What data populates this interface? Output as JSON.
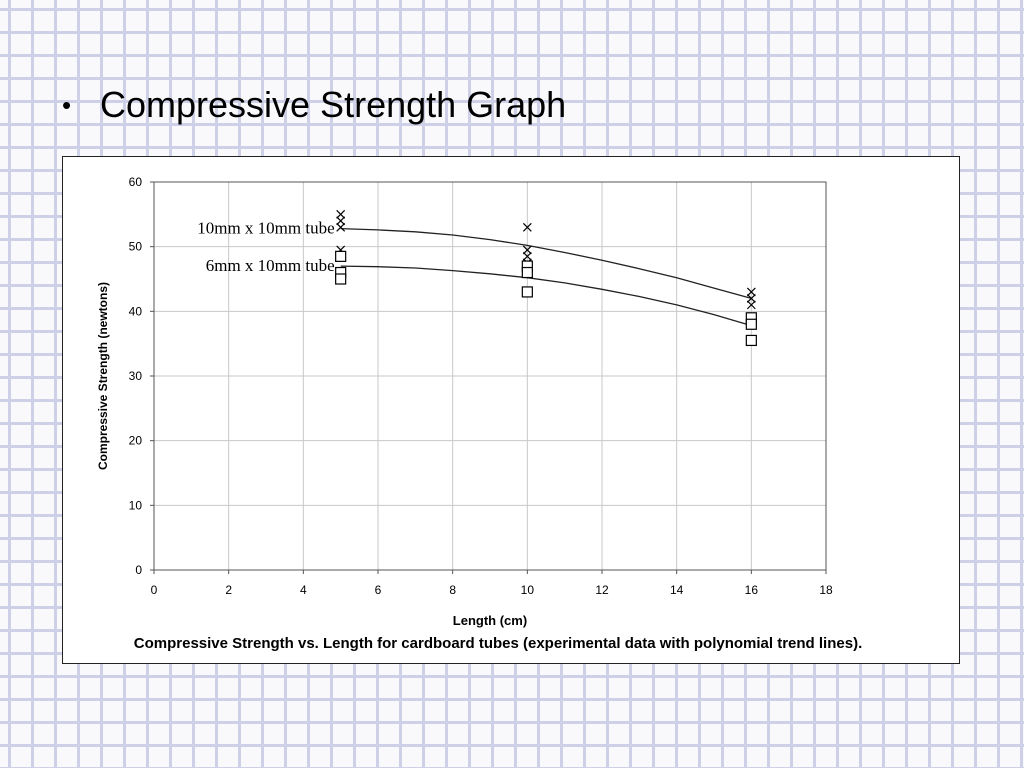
{
  "slide": {
    "bullet": "•",
    "title": "Compressive Strength Graph"
  },
  "chart_data": {
    "type": "scatter",
    "title": "",
    "caption": "Compressive Strength vs. Length for cardboard tubes (experimental data with polynomial trend lines).",
    "xlabel": "Length (cm)",
    "ylabel": "Compressive Strength (newtons)",
    "xlim": [
      0,
      18
    ],
    "ylim": [
      0,
      60
    ],
    "xticks": [
      0,
      2,
      4,
      6,
      8,
      10,
      12,
      14,
      16,
      18
    ],
    "yticks": [
      0,
      10,
      20,
      30,
      40,
      50,
      60
    ],
    "grid": true,
    "trendline": "polynomial",
    "series": [
      {
        "name": "10mm x 10mm tube",
        "marker": "x",
        "points": [
          [
            5,
            55
          ],
          [
            5,
            54
          ],
          [
            5,
            53
          ],
          [
            5,
            49.5
          ],
          [
            10,
            53
          ],
          [
            10,
            49.5
          ],
          [
            10,
            48.5
          ],
          [
            10,
            47.5
          ],
          [
            10,
            46.5
          ],
          [
            16,
            43
          ],
          [
            16,
            42
          ],
          [
            16,
            41
          ]
        ],
        "trend": [
          [
            5,
            52.8
          ],
          [
            6,
            52.6
          ],
          [
            7,
            52.3
          ],
          [
            8,
            51.8
          ],
          [
            9,
            51.1
          ],
          [
            10,
            50.2
          ],
          [
            11,
            49.1
          ],
          [
            12,
            47.9
          ],
          [
            13,
            46.6
          ],
          [
            14,
            45.2
          ],
          [
            15,
            43.6
          ],
          [
            16,
            42.0
          ]
        ],
        "label_anchor": [
          5,
          52.8
        ]
      },
      {
        "name": "6mm x 10mm tube",
        "marker": "square",
        "points": [
          [
            5,
            48.5
          ],
          [
            5,
            46
          ],
          [
            5,
            45
          ],
          [
            10,
            47
          ],
          [
            10,
            46
          ],
          [
            10,
            43
          ],
          [
            16,
            39
          ],
          [
            16,
            38
          ],
          [
            16,
            35.5
          ]
        ],
        "trend": [
          [
            5,
            47.0
          ],
          [
            6,
            46.9
          ],
          [
            7,
            46.7
          ],
          [
            8,
            46.3
          ],
          [
            9,
            45.8
          ],
          [
            10,
            45.2
          ],
          [
            11,
            44.4
          ],
          [
            12,
            43.4
          ],
          [
            13,
            42.3
          ],
          [
            14,
            41.0
          ],
          [
            15,
            39.5
          ],
          [
            16,
            37.8
          ]
        ],
        "label_anchor": [
          5,
          47.0
        ]
      }
    ]
  }
}
